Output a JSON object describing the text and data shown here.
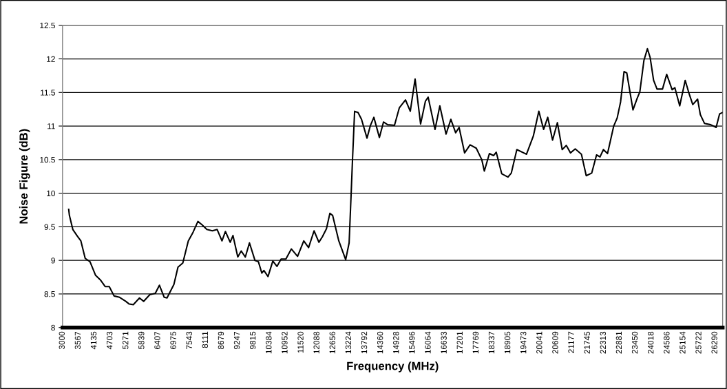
{
  "chart_data": {
    "type": "line",
    "xlabel": "Frequency (MHz)",
    "ylabel": "Noise Figure (dB)",
    "xlim": [
      3000,
      26560
    ],
    "ylim": [
      8,
      12.5
    ],
    "xticks": [
      3000,
      3567,
      4135,
      4703,
      5271,
      5839,
      6407,
      6975,
      7543,
      8111,
      8679,
      9247,
      9815,
      10384,
      10952,
      11520,
      12088,
      12656,
      13224,
      13792,
      14360,
      14928,
      15496,
      16064,
      16633,
      17201,
      17769,
      18337,
      18905,
      19473,
      20041,
      20609,
      21177,
      21745,
      22313,
      22881,
      23450,
      24018,
      24586,
      25154,
      25722,
      26290
    ],
    "yticks": [
      8,
      8.5,
      9,
      9.5,
      10,
      10.5,
      11,
      11.5,
      12,
      12.5
    ],
    "grid": "y",
    "marker": "none",
    "line_style": "solid",
    "series": [
      {
        "color": "#000000",
        "x": [
          3221,
          3245,
          3368,
          3532,
          3655,
          3809,
          3981,
          4177,
          4349,
          4521,
          4668,
          4840,
          5036,
          5257,
          5379,
          5527,
          5747,
          5895,
          6115,
          6312,
          6459,
          6630,
          6729,
          6974,
          7121,
          7293,
          7489,
          7661,
          7832,
          7980,
          8151,
          8348,
          8519,
          8691,
          8814,
          8985,
          9083,
          9255,
          9378,
          9525,
          9672,
          9868,
          9991,
          10114,
          10187,
          10334,
          10506,
          10653,
          10801,
          10972,
          11168,
          11389,
          11610,
          11782,
          11978,
          12150,
          12273,
          12420,
          12542,
          12640,
          12861,
          13106,
          13229,
          13303,
          13352,
          13425,
          13548,
          13671,
          13867,
          13990,
          14112,
          14309,
          14456,
          14603,
          14848,
          15020,
          15240,
          15412,
          15584,
          15780,
          15952,
          16050,
          16295,
          16467,
          16688,
          16860,
          17031,
          17154,
          17350,
          17546,
          17767,
          17963,
          18055,
          18236,
          18383,
          18479,
          18675,
          18896,
          19018,
          19215,
          19558,
          19803,
          20000,
          20171,
          20318,
          20490,
          20662,
          20834,
          20981,
          21128,
          21299,
          21520,
          21692,
          21888,
          22060,
          22183,
          22305,
          22452,
          22673,
          22796,
          22918,
          23041,
          23139,
          23360,
          23507,
          23605,
          23752,
          23875,
          23973,
          24096,
          24218,
          24414,
          24562,
          24758,
          24856,
          25028,
          25224,
          25372,
          25494,
          25666,
          25764,
          25911,
          26132,
          26328,
          26451,
          26549
        ],
        "values": [
          9.76,
          9.67,
          9.46,
          9.36,
          9.29,
          9.03,
          8.98,
          8.78,
          8.71,
          8.61,
          8.61,
          8.47,
          8.45,
          8.39,
          8.35,
          8.34,
          8.44,
          8.39,
          8.49,
          8.51,
          8.63,
          8.45,
          8.44,
          8.64,
          8.9,
          8.96,
          9.29,
          9.42,
          9.58,
          9.53,
          9.46,
          9.44,
          9.46,
          9.29,
          9.43,
          9.27,
          9.37,
          9.05,
          9.14,
          9.05,
          9.26,
          9.0,
          8.98,
          8.81,
          8.85,
          8.76,
          8.99,
          8.91,
          9.02,
          9.02,
          9.17,
          9.06,
          9.29,
          9.19,
          9.44,
          9.27,
          9.35,
          9.47,
          9.7,
          9.67,
          9.29,
          9.01,
          9.26,
          10.01,
          10.52,
          11.22,
          11.2,
          11.1,
          10.82,
          11.01,
          11.13,
          10.83,
          11.06,
          11.02,
          11.01,
          11.27,
          11.39,
          11.22,
          11.7,
          11.03,
          11.37,
          11.43,
          10.95,
          11.3,
          10.88,
          11.1,
          10.9,
          10.98,
          10.6,
          10.72,
          10.67,
          10.5,
          10.33,
          10.59,
          10.56,
          10.61,
          10.29,
          10.24,
          10.3,
          10.65,
          10.58,
          10.85,
          11.22,
          10.95,
          11.13,
          10.79,
          11.05,
          10.65,
          10.71,
          10.6,
          10.66,
          10.58,
          10.26,
          10.3,
          10.57,
          10.54,
          10.65,
          10.59,
          11.0,
          11.12,
          11.36,
          11.81,
          11.79,
          11.24,
          11.41,
          11.51,
          11.98,
          12.15,
          12.02,
          11.68,
          11.55,
          11.55,
          11.77,
          11.54,
          11.57,
          11.3,
          11.68,
          11.47,
          11.32,
          11.4,
          11.17,
          11.04,
          11.02,
          10.98,
          11.18,
          11.2
        ]
      }
    ]
  }
}
